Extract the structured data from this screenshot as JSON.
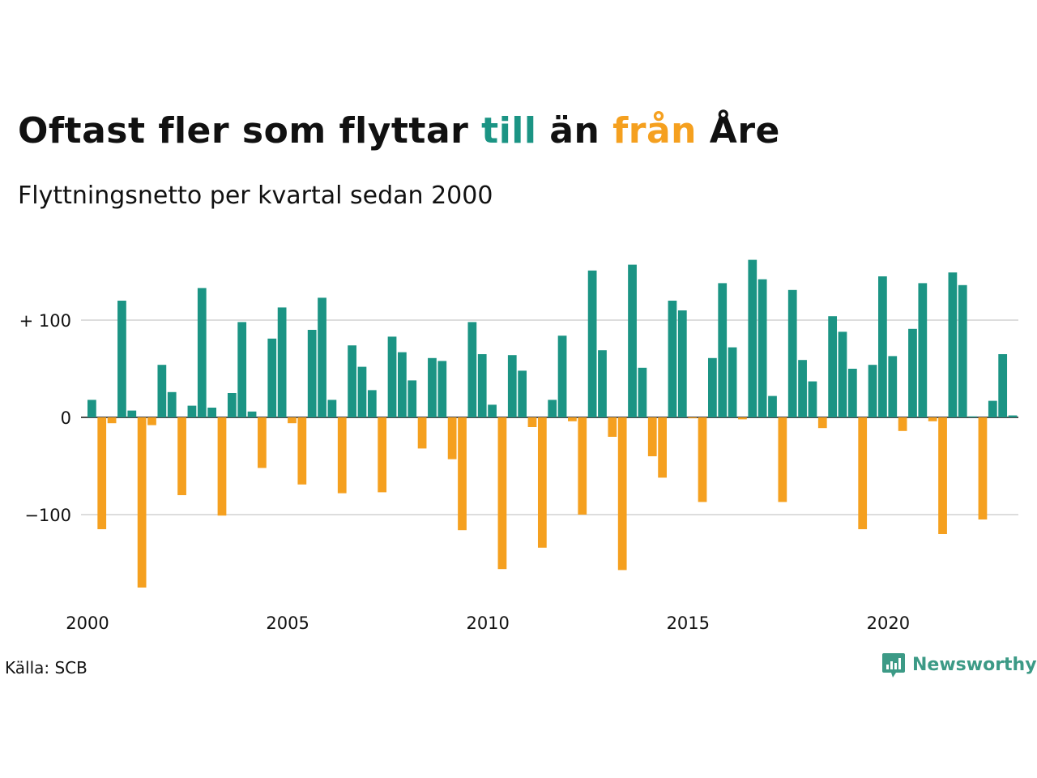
{
  "header": {
    "title_parts": [
      "Oftast fler som flyttar ",
      "till",
      " än ",
      "från",
      " Åre"
    ],
    "subtitle": "Flyttningsnetto per kvartal sedan 2000"
  },
  "footer": {
    "source": "Källa: SCB",
    "brand": "Newsworthy",
    "brand_icon": "newsworthy-logo-icon"
  },
  "colors": {
    "positive": "#1b9484",
    "negative": "#f5a01f",
    "gridline": "#dddddd",
    "brand": "#3c9a86",
    "text": "#111111"
  },
  "chart_data": {
    "type": "bar",
    "title": "Oftast fler som flyttar till än från Åre",
    "subtitle": "Flyttningsnetto per kvartal sedan 2000",
    "x_start": "2000 Q1",
    "x_ticks": [
      "2000",
      "2005",
      "2010",
      "2015",
      "2020"
    ],
    "y_ticks": [
      {
        "value": 100,
        "label": "+ 100"
      },
      {
        "value": 0,
        "label": "0"
      },
      {
        "value": -100,
        "label": "−100"
      }
    ],
    "ylim": [
      -190,
      175
    ],
    "grid": true,
    "values": [
      18,
      -115,
      -6,
      120,
      7,
      -175,
      -8,
      54,
      26,
      -80,
      12,
      133,
      10,
      -101,
      25,
      98,
      6,
      -52,
      81,
      113,
      -6,
      -69,
      90,
      123,
      18,
      -78,
      74,
      52,
      28,
      -77,
      83,
      67,
      38,
      -32,
      61,
      58,
      -43,
      -116,
      98,
      65,
      13,
      -156,
      64,
      48,
      -10,
      -134,
      18,
      84,
      -4,
      -100,
      151,
      69,
      -20,
      -157,
      157,
      51,
      -40,
      -62,
      120,
      110,
      -1,
      -87,
      61,
      138,
      72,
      -2,
      162,
      142,
      22,
      -87,
      131,
      59,
      37,
      -11,
      104,
      88,
      50,
      -115,
      54,
      145,
      63,
      -14,
      91,
      138,
      -4,
      -120,
      149,
      136,
      1,
      -105,
      17,
      65,
      2
    ]
  }
}
